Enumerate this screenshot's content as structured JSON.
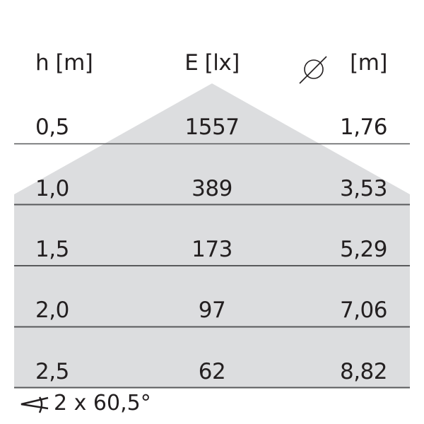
{
  "headers": {
    "height": "h [m]",
    "illuminance": "E [lx]",
    "diameter_icon": "diameter-icon",
    "diameter_unit": "[m]"
  },
  "rows": [
    {
      "h": "0,5",
      "e": "1557",
      "d": "1,76"
    },
    {
      "h": "1,0",
      "e": "389",
      "d": "3,53"
    },
    {
      "h": "1,5",
      "e": "173",
      "d": "5,29"
    },
    {
      "h": "2,0",
      "e": "97",
      "d": "7,06"
    },
    {
      "h": "2,5",
      "e": "62",
      "d": "8,82"
    }
  ],
  "footer": {
    "angle_icon": "angle-icon",
    "beam_angle": "2 x 60,5°"
  },
  "colors": {
    "cone_fill": "#dcdddf",
    "line": "#58595b",
    "text": "#231f20"
  }
}
